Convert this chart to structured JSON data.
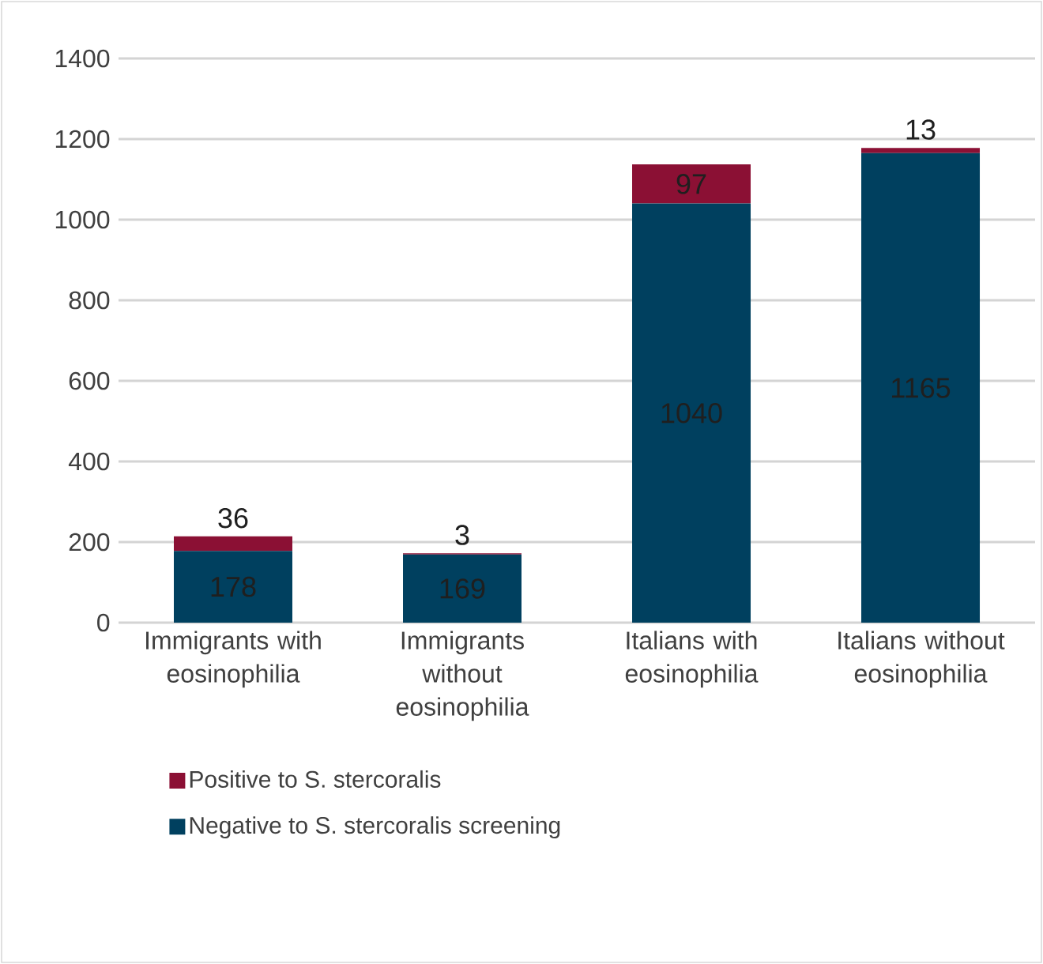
{
  "chart_data": {
    "type": "bar",
    "stacked": true,
    "categories": [
      "Immigrants with eosinophilia",
      "Immigrants without eosinophilia",
      "Italians with eosinophilia",
      "Italians without eosinophilia"
    ],
    "series": [
      {
        "name": "Negative to S. stercoralis screening",
        "color": "#00405f",
        "values": [
          178,
          169,
          1040,
          1165
        ]
      },
      {
        "name": "Positive to S. stercoralis",
        "color": "#8b1034",
        "values": [
          36,
          3,
          97,
          13
        ]
      }
    ],
    "ylim": [
      0,
      1400
    ],
    "yticks": [
      0,
      200,
      400,
      600,
      800,
      1000,
      1200,
      1400
    ],
    "grid": "y",
    "legend": "bottom",
    "data_labels": true
  }
}
